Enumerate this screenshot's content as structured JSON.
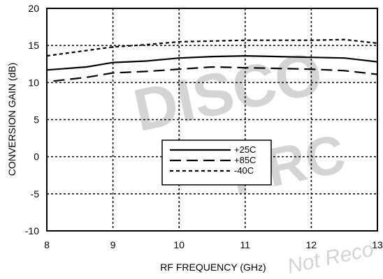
{
  "watermark": {
    "big": "DISCO",
    "mid": "PRC",
    "small": "Not Reco"
  },
  "chart_data": {
    "type": "line",
    "xlabel": "RF FREQUENCY (GHz)",
    "ylabel": "CONVERSION GAIN (dB)",
    "xlim": [
      8,
      13
    ],
    "ylim": [
      -10,
      20
    ],
    "x_ticks": [
      "8",
      "9",
      "10",
      "11",
      "12",
      "13"
    ],
    "y_ticks": [
      "-10",
      "-5",
      "0",
      "5",
      "10",
      "15",
      "20"
    ],
    "grid": true,
    "legend_position": "center",
    "series": [
      {
        "name": "+25C",
        "dash": "solid",
        "x": [
          8.0,
          8.6,
          9.0,
          9.5,
          10.0,
          10.5,
          11.0,
          11.5,
          12.0,
          12.5,
          13.0
        ],
        "y": [
          11.7,
          12.1,
          12.7,
          12.9,
          13.3,
          13.5,
          13.6,
          13.5,
          13.4,
          13.3,
          12.8
        ]
      },
      {
        "name": "+85C",
        "dash": "long-dash",
        "x": [
          8.1,
          8.6,
          9.0,
          9.5,
          10.0,
          10.5,
          11.0,
          11.5,
          12.0,
          12.5,
          13.0
        ],
        "y": [
          10.2,
          10.7,
          11.3,
          11.5,
          11.8,
          12.1,
          12.0,
          11.9,
          11.8,
          11.6,
          11.1
        ]
      },
      {
        "name": "-40C",
        "dash": "short-dash",
        "x": [
          8.0,
          8.5,
          9.0,
          9.5,
          10.0,
          10.5,
          11.0,
          11.5,
          12.0,
          12.5,
          13.0
        ],
        "y": [
          13.6,
          14.2,
          14.8,
          15.1,
          15.5,
          15.6,
          15.7,
          15.7,
          15.7,
          15.8,
          15.3
        ]
      }
    ],
    "colors": {
      "line": "#000000",
      "grid": "#000000",
      "background": "#ffffff"
    }
  }
}
